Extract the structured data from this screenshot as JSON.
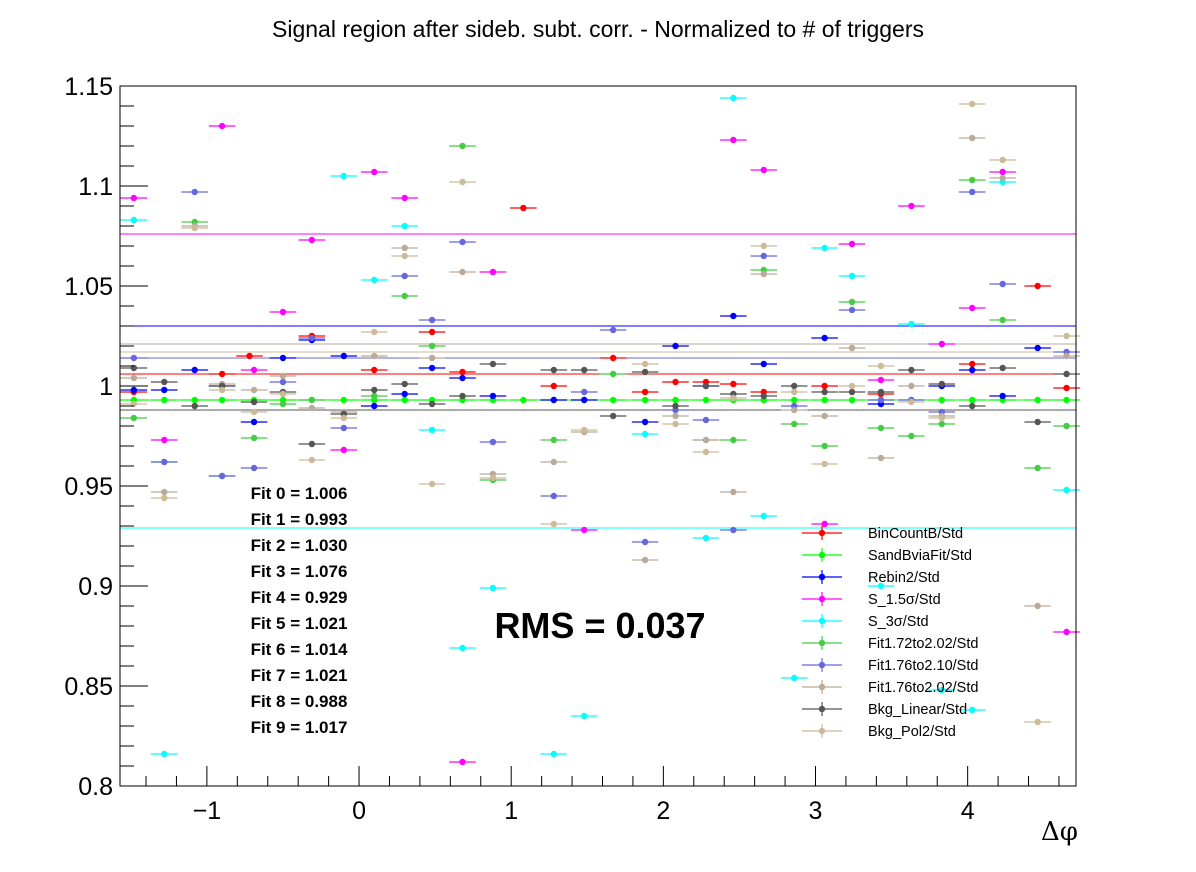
{
  "chart_data": {
    "type": "scatter",
    "title": "Signal region after sideb. subt. corr. - Normalized to # of triggers",
    "xlabel": "Δφ",
    "ylabel": "",
    "xlim": [
      -1.571,
      4.712
    ],
    "ylim": [
      0.8,
      1.15
    ],
    "x_ticks": [
      -1,
      0,
      1,
      2,
      3,
      4
    ],
    "x_tick_labels": [
      "−1",
      "0",
      "1",
      "2",
      "3",
      "4"
    ],
    "y_ticks": [
      0.8,
      0.85,
      0.9,
      0.95,
      1.0,
      1.05,
      1.1,
      1.15
    ],
    "y_tick_labels": [
      "0.8",
      "0.85",
      "0.9",
      "0.95",
      "1",
      "1.05",
      "1.1",
      "1.15"
    ],
    "x_bin_width": 0.1745,
    "legend_position": "bottom-right",
    "grid": false,
    "fits_label": [
      "Fit 0 = 1.006",
      "Fit 1 = 0.993",
      "Fit 2 = 1.030",
      "Fit 3 = 1.076",
      "Fit 4 = 0.929",
      "Fit 5 = 1.021",
      "Fit 6 = 1.014",
      "Fit 7 = 1.021",
      "Fit 8 = 0.988",
      "Fit 9 = 1.017"
    ],
    "rms_label": "RMS = 0.037",
    "series": [
      {
        "name": "BinCountB/Std",
        "color": "#ff0000",
        "fit": 1.006,
        "points": [
          [
            1.08,
            1.089
          ],
          [
            0.48,
            1.027
          ],
          [
            -0.31,
            1.025
          ],
          [
            4.46,
            1.05
          ],
          [
            1.67,
            1.014
          ],
          [
            -0.72,
            1.015
          ],
          [
            -1.48,
            0.997
          ],
          [
            -0.9,
            1.006
          ],
          [
            0.1,
            1.008
          ],
          [
            0.68,
            1.007
          ],
          [
            1.28,
            1.0
          ],
          [
            1.88,
            0.997
          ],
          [
            2.08,
            1.002
          ],
          [
            2.28,
            1.002
          ],
          [
            2.46,
            1.001
          ],
          [
            2.66,
            0.997
          ],
          [
            3.06,
            1.0
          ],
          [
            3.43,
            0.996
          ],
          [
            4.03,
            1.011
          ],
          [
            4.65,
            0.999
          ]
        ]
      },
      {
        "name": "SandBviaFit/Std",
        "color": "#00ff00",
        "fit": 0.993,
        "points": [
          [
            -1.48,
            0.993
          ],
          [
            -1.28,
            0.993
          ],
          [
            -1.08,
            0.993
          ],
          [
            -0.9,
            0.993
          ],
          [
            -0.69,
            0.993
          ],
          [
            -0.5,
            0.993
          ],
          [
            -0.31,
            0.993
          ],
          [
            -0.1,
            0.993
          ],
          [
            0.1,
            0.993
          ],
          [
            0.3,
            0.993
          ],
          [
            0.48,
            0.993
          ],
          [
            0.68,
            0.993
          ],
          [
            0.88,
            0.993
          ],
          [
            1.08,
            0.993
          ],
          [
            1.28,
            0.993
          ],
          [
            1.48,
            0.993
          ],
          [
            1.67,
            0.993
          ],
          [
            1.88,
            0.993
          ],
          [
            2.08,
            0.993
          ],
          [
            2.28,
            0.993
          ],
          [
            2.46,
            0.993
          ],
          [
            2.66,
            0.993
          ],
          [
            2.86,
            0.993
          ],
          [
            3.06,
            0.993
          ],
          [
            3.24,
            0.993
          ],
          [
            3.43,
            0.993
          ],
          [
            3.63,
            0.993
          ],
          [
            3.83,
            0.993
          ],
          [
            4.03,
            0.993
          ],
          [
            4.23,
            0.993
          ],
          [
            4.46,
            0.993
          ],
          [
            4.65,
            0.993
          ]
        ]
      },
      {
        "name": "Rebin2/Std",
        "color": "#0000ff",
        "fit": 1.03,
        "points": [
          [
            -1.48,
            0.998
          ],
          [
            -1.28,
            0.998
          ],
          [
            -1.08,
            1.008
          ],
          [
            -0.9,
            1.0
          ],
          [
            -0.69,
            0.982
          ],
          [
            -0.5,
            1.014
          ],
          [
            -0.31,
            1.023
          ],
          [
            -0.1,
            1.015
          ],
          [
            0.1,
            0.99
          ],
          [
            0.3,
            0.996
          ],
          [
            0.48,
            1.009
          ],
          [
            0.68,
            1.004
          ],
          [
            0.88,
            0.995
          ],
          [
            1.28,
            0.993
          ],
          [
            1.48,
            0.993
          ],
          [
            1.88,
            0.982
          ],
          [
            2.08,
            1.02
          ],
          [
            2.28,
            1.0
          ],
          [
            2.46,
            1.035
          ],
          [
            2.66,
            1.011
          ],
          [
            3.06,
            1.024
          ],
          [
            3.43,
            0.991
          ],
          [
            3.83,
            1.0
          ],
          [
            4.03,
            1.008
          ],
          [
            4.23,
            0.995
          ],
          [
            4.46,
            1.019
          ]
        ]
      },
      {
        "name": "S_1.5σ/Std",
        "color": "#ff00ff",
        "fit": 1.076,
        "points": [
          [
            -1.48,
            1.094
          ],
          [
            -1.28,
            0.973
          ],
          [
            -0.9,
            1.13
          ],
          [
            -0.69,
            1.008
          ],
          [
            -0.5,
            1.037
          ],
          [
            -0.31,
            1.073
          ],
          [
            -0.1,
            0.968
          ],
          [
            0.1,
            1.107
          ],
          [
            0.3,
            1.094
          ],
          [
            0.68,
            0.812
          ],
          [
            0.88,
            1.057
          ],
          [
            1.48,
            0.928
          ],
          [
            2.46,
            1.123
          ],
          [
            2.66,
            1.108
          ],
          [
            3.06,
            0.931
          ],
          [
            3.24,
            1.071
          ],
          [
            3.43,
            1.003
          ],
          [
            3.63,
            1.09
          ],
          [
            3.83,
            1.021
          ],
          [
            4.03,
            1.039
          ],
          [
            4.23,
            1.107
          ],
          [
            4.65,
            0.877
          ]
        ]
      },
      {
        "name": "S_3σ/Std",
        "color": "#00ffff",
        "fit": 0.929,
        "points": [
          [
            -1.48,
            1.083
          ],
          [
            -1.28,
            0.816
          ],
          [
            -0.1,
            1.105
          ],
          [
            0.1,
            1.053
          ],
          [
            0.3,
            1.08
          ],
          [
            0.48,
            0.978
          ],
          [
            0.68,
            0.869
          ],
          [
            0.88,
            0.899
          ],
          [
            1.28,
            0.816
          ],
          [
            1.48,
            0.835
          ],
          [
            1.88,
            0.976
          ],
          [
            2.28,
            0.924
          ],
          [
            2.46,
            1.144
          ],
          [
            2.66,
            0.935
          ],
          [
            2.86,
            0.854
          ],
          [
            3.06,
            1.069
          ],
          [
            3.24,
            1.055
          ],
          [
            3.43,
            0.9
          ],
          [
            3.63,
            1.031
          ],
          [
            3.83,
            0.848
          ],
          [
            4.03,
            0.838
          ],
          [
            4.23,
            1.102
          ],
          [
            4.65,
            0.948
          ]
        ]
      },
      {
        "name": "Fit1.72to2.02/Std",
        "color": "#44cc44",
        "fit": 1.021,
        "points": [
          [
            -1.48,
            0.984
          ],
          [
            -1.28,
            0.962
          ],
          [
            -1.08,
            1.082
          ],
          [
            -0.9,
            0.955
          ],
          [
            -0.69,
            0.974
          ],
          [
            -0.5,
            0.991
          ],
          [
            -0.31,
            0.993
          ],
          [
            0.1,
            0.995
          ],
          [
            0.3,
            1.045
          ],
          [
            0.48,
            1.02
          ],
          [
            0.68,
            1.12
          ],
          [
            0.88,
            0.953
          ],
          [
            1.28,
            0.973
          ],
          [
            1.67,
            1.006
          ],
          [
            2.28,
            0.973
          ],
          [
            2.46,
            0.973
          ],
          [
            2.66,
            1.058
          ],
          [
            2.86,
            0.981
          ],
          [
            3.06,
            0.97
          ],
          [
            3.24,
            1.042
          ],
          [
            3.43,
            0.979
          ],
          [
            3.63,
            0.975
          ],
          [
            3.83,
            0.981
          ],
          [
            4.03,
            1.103
          ],
          [
            4.23,
            1.033
          ],
          [
            4.46,
            0.959
          ],
          [
            4.65,
            0.98
          ]
        ]
      },
      {
        "name": "Fit1.76to2.10/Std",
        "color": "#6666dd",
        "fit": 1.014,
        "points": [
          [
            -1.48,
            1.014
          ],
          [
            -1.28,
            0.962
          ],
          [
            -1.08,
            1.097
          ],
          [
            -0.9,
            0.955
          ],
          [
            -0.69,
            0.959
          ],
          [
            -0.5,
            1.002
          ],
          [
            -0.31,
            1.024
          ],
          [
            -0.1,
            0.979
          ],
          [
            0.3,
            1.055
          ],
          [
            0.48,
            1.033
          ],
          [
            0.68,
            1.072
          ],
          [
            0.88,
            0.972
          ],
          [
            1.28,
            0.945
          ],
          [
            1.48,
            0.997
          ],
          [
            1.67,
            1.028
          ],
          [
            1.88,
            0.922
          ],
          [
            2.08,
            0.988
          ],
          [
            2.28,
            0.983
          ],
          [
            2.46,
            0.928
          ],
          [
            2.66,
            1.065
          ],
          [
            2.86,
            0.99
          ],
          [
            3.24,
            1.038
          ],
          [
            3.43,
            0.993
          ],
          [
            3.63,
            0.993
          ],
          [
            3.83,
            0.987
          ],
          [
            4.03,
            1.097
          ],
          [
            4.23,
            1.051
          ],
          [
            4.65,
            1.017
          ]
        ]
      },
      {
        "name": "Fit1.76to2.02/Std",
        "color": "#bbaa99",
        "fit": 1.021,
        "points": [
          [
            -1.48,
            1.004
          ],
          [
            -1.28,
            0.947
          ],
          [
            -1.08,
            1.08
          ],
          [
            -0.9,
            1.001
          ],
          [
            -0.69,
            0.998
          ],
          [
            -0.5,
            1.005
          ],
          [
            -0.31,
            0.989
          ],
          [
            -0.1,
            0.987
          ],
          [
            0.1,
            1.015
          ],
          [
            0.3,
            1.069
          ],
          [
            0.48,
            1.014
          ],
          [
            0.68,
            1.057
          ],
          [
            0.88,
            0.956
          ],
          [
            1.28,
            0.962
          ],
          [
            1.48,
            0.977
          ],
          [
            1.88,
            0.913
          ],
          [
            2.08,
            0.985
          ],
          [
            2.28,
            0.973
          ],
          [
            2.46,
            0.947
          ],
          [
            2.66,
            1.056
          ],
          [
            2.86,
            0.988
          ],
          [
            3.06,
            0.985
          ],
          [
            3.24,
            1.019
          ],
          [
            3.43,
            0.964
          ],
          [
            3.63,
            1.0
          ],
          [
            3.83,
            0.985
          ],
          [
            4.03,
            1.124
          ],
          [
            4.23,
            1.104
          ],
          [
            4.46,
            0.89
          ],
          [
            4.65,
            1.015
          ]
        ]
      },
      {
        "name": "Bkg_Linear/Std",
        "color": "#555555",
        "fit": 0.988,
        "points": [
          [
            -1.48,
            1.009
          ],
          [
            -1.28,
            1.002
          ],
          [
            -1.08,
            0.99
          ],
          [
            -0.9,
            1.0
          ],
          [
            -0.69,
            0.992
          ],
          [
            -0.5,
            0.997
          ],
          [
            -0.31,
            0.971
          ],
          [
            -0.1,
            0.986
          ],
          [
            0.1,
            0.998
          ],
          [
            0.3,
            1.001
          ],
          [
            0.48,
            0.991
          ],
          [
            0.68,
            0.995
          ],
          [
            0.88,
            1.011
          ],
          [
            1.28,
            1.008
          ],
          [
            1.48,
            1.008
          ],
          [
            1.67,
            0.985
          ],
          [
            1.88,
            1.007
          ],
          [
            2.08,
            0.99
          ],
          [
            2.28,
            1.0
          ],
          [
            2.46,
            0.996
          ],
          [
            2.66,
            0.995
          ],
          [
            2.86,
            1.0
          ],
          [
            3.06,
            0.997
          ],
          [
            3.24,
            0.997
          ],
          [
            3.43,
            0.997
          ],
          [
            3.63,
            1.008
          ],
          [
            3.83,
            1.001
          ],
          [
            4.03,
            0.99
          ],
          [
            4.23,
            1.009
          ],
          [
            4.46,
            0.982
          ],
          [
            4.65,
            1.006
          ]
        ]
      },
      {
        "name": "Bkg_Pol2/Std",
        "color": "#ccbb99",
        "fit": 1.017,
        "points": [
          [
            -1.48,
            0.991
          ],
          [
            -1.28,
            0.944
          ],
          [
            -1.08,
            1.079
          ],
          [
            -0.9,
            0.998
          ],
          [
            -0.69,
            0.987
          ],
          [
            -0.5,
            0.996
          ],
          [
            -0.31,
            0.963
          ],
          [
            -0.1,
            0.984
          ],
          [
            0.1,
            1.027
          ],
          [
            0.3,
            1.065
          ],
          [
            0.48,
            0.951
          ],
          [
            0.68,
            1.102
          ],
          [
            0.88,
            0.954
          ],
          [
            1.28,
            0.931
          ],
          [
            1.48,
            0.978
          ],
          [
            1.88,
            1.011
          ],
          [
            2.08,
            0.981
          ],
          [
            2.28,
            0.967
          ],
          [
            2.46,
            0.994
          ],
          [
            2.66,
            1.07
          ],
          [
            2.86,
            0.997
          ],
          [
            3.06,
            0.961
          ],
          [
            3.24,
            1.0
          ],
          [
            3.43,
            1.01
          ],
          [
            3.63,
            0.992
          ],
          [
            3.83,
            0.984
          ],
          [
            4.03,
            1.141
          ],
          [
            4.23,
            1.113
          ],
          [
            4.46,
            0.832
          ],
          [
            4.65,
            1.025
          ]
        ]
      }
    ]
  }
}
